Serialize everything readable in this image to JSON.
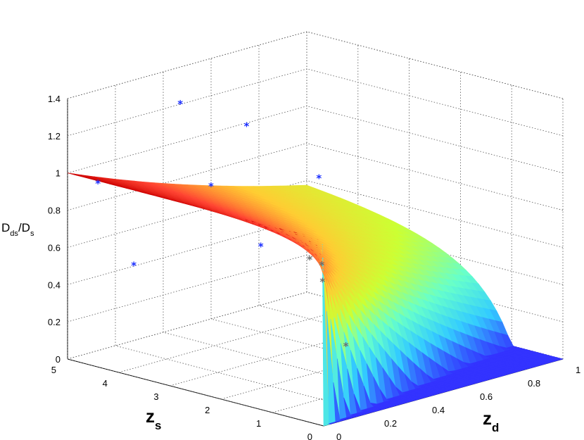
{
  "chart_data": {
    "type": "surface3d",
    "zlabel": "D_ds/D_s",
    "xlabel": "z_d",
    "ylabel": "z_s",
    "x_ticks": [
      "0",
      "0.2",
      "0.4",
      "0.6",
      "0.8",
      "1"
    ],
    "y_ticks": [
      "0",
      "1",
      "2",
      "3",
      "4",
      "5"
    ],
    "z_ticks": [
      "0",
      "0.2",
      "0.4",
      "0.6",
      "0.8",
      "1",
      "1.2",
      "1.4"
    ],
    "xlim": [
      0,
      1
    ],
    "ylim": [
      0,
      5
    ],
    "zlim": [
      0,
      1.4
    ],
    "grid": true,
    "colormap": "jet",
    "colormap_stops": [
      "#3333ff",
      "#33ccff",
      "#66ffcc",
      "#ccff33",
      "#ffcc33",
      "#ff4433",
      "#cc0000"
    ],
    "surface": {
      "function": "D_ds/D_s for z_d < z_s, 0 otherwise",
      "z_d_range": [
        0,
        1
      ],
      "z_s_range": [
        0,
        5
      ]
    },
    "series": [
      {
        "marker": "*",
        "color": "#1a2eff",
        "points": [
          {
            "x": 0.02,
            "y": 4.5,
            "z": 0.97
          },
          {
            "x": 0.02,
            "y": 3.8,
            "z": 0.58
          },
          {
            "x": 0.3,
            "y": 4.2,
            "z": 1.32
          },
          {
            "x": 0.32,
            "y": 3.0,
            "z": 1.28
          },
          {
            "x": 0.3,
            "y": 3.6,
            "z": 0.92
          },
          {
            "x": 0.08,
            "y": 1.6,
            "z": 0.82
          },
          {
            "x": 0.58,
            "y": 2.8,
            "z": 0.92
          }
        ]
      },
      {
        "marker": "*",
        "color": "#6e6e6e",
        "points": [
          {
            "x": 0.22,
            "y": 1.3,
            "z": 0.72
          },
          {
            "x": 0.26,
            "y": 1.25,
            "z": 0.68
          },
          {
            "x": 0.22,
            "y": 1.05,
            "z": 0.62
          },
          {
            "x": 0.2,
            "y": 0.5,
            "z": 0.32
          }
        ]
      }
    ]
  }
}
